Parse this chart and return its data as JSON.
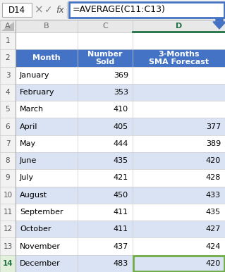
{
  "formula_bar_cell": "D14",
  "formula_bar_formula": "=AVERAGE(C11:C13)",
  "header_bg": "#4472C4",
  "header_text_color": "#FFFFFF",
  "row_bg_alt": "#DAE3F3",
  "row_bg_white": "#FFFFFF",
  "col_header_bg": "#D9D9D9",
  "col_header_active_bg": "#D9D9D9",
  "col_header_active_border": "#217346",
  "row_header_bg": "#F2F2F2",
  "row_header_active_color": "#217346",
  "active_cell_border": "#70AD47",
  "arrow_color": "#4472C4",
  "formula_bar_border": "#4472C4",
  "formula_bar_bg": "#F2F2F2",
  "months": [
    "",
    "Month",
    "January",
    "February",
    "March",
    "April",
    "May",
    "June",
    "July",
    "August",
    "September",
    "October",
    "November",
    "December"
  ],
  "number_sold": [
    "",
    "",
    369,
    353,
    410,
    405,
    444,
    435,
    421,
    450,
    411,
    411,
    437,
    483
  ],
  "sma_forecast": [
    "",
    "",
    "",
    "",
    "",
    377,
    389,
    420,
    428,
    433,
    435,
    427,
    424,
    420
  ],
  "col_B_header": "Month",
  "col_C_header": "Number\nSold",
  "col_D_header": "3-Months\nSMA Forecast"
}
